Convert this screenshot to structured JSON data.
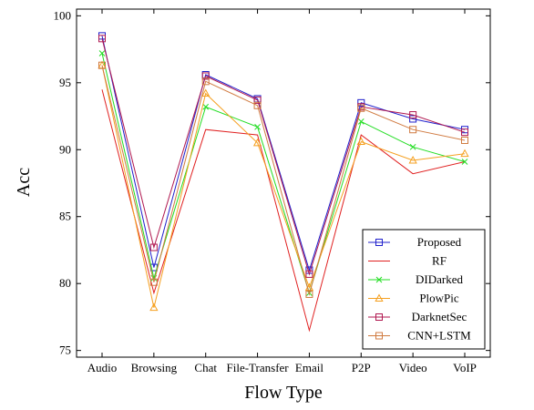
{
  "chart_data": {
    "type": "line",
    "xlabel": "Flow Type",
    "ylabel": "Acc",
    "ylim": [
      74.5,
      100.5
    ],
    "yticks": [
      75,
      80,
      85,
      90,
      95,
      100
    ],
    "categories": [
      "Audio",
      "Browsing",
      "Chat",
      "File-Transfer",
      "Email",
      "P2P",
      "Video",
      "VoIP"
    ],
    "legend_position": "bottom-right",
    "series": [
      {
        "name": "Proposed",
        "color": "#1f1fcc",
        "marker": "square",
        "values": [
          98.5,
          81.2,
          95.6,
          93.8,
          81.0,
          93.5,
          92.3,
          91.5
        ]
      },
      {
        "name": "RF",
        "color": "#e02020",
        "marker": "none",
        "values": [
          94.5,
          79.3,
          91.5,
          91.1,
          76.5,
          91.1,
          88.2,
          89.1
        ]
      },
      {
        "name": "DIDarked",
        "color": "#22dd22",
        "marker": "x",
        "values": [
          97.2,
          80.4,
          93.2,
          91.7,
          79.3,
          92.1,
          90.2,
          89.1
        ]
      },
      {
        "name": "PlowPic",
        "color": "#f5a020",
        "marker": "triangle",
        "values": [
          96.3,
          78.2,
          94.2,
          90.5,
          79.7,
          90.6,
          89.2,
          89.7
        ]
      },
      {
        "name": "DarknetSec",
        "color": "#b0174f",
        "marker": "square",
        "values": [
          98.3,
          82.7,
          95.5,
          93.7,
          80.7,
          93.2,
          92.6,
          91.3
        ]
      },
      {
        "name": "CNN+LSTM",
        "color": "#d07a40",
        "marker": "square",
        "values": [
          96.3,
          80.1,
          95.1,
          93.3,
          79.2,
          93.1,
          91.5,
          90.7
        ]
      }
    ]
  }
}
